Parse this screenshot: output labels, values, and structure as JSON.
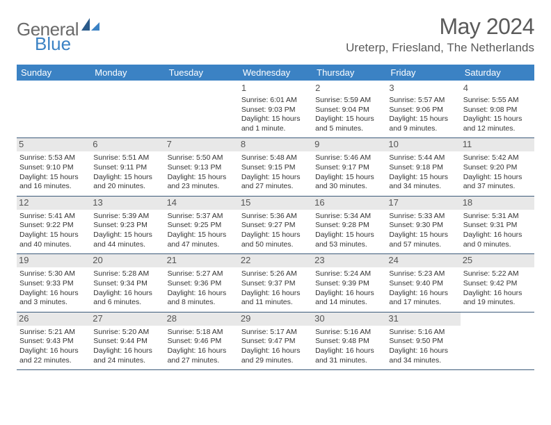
{
  "logo": {
    "text1": "General",
    "text2": "Blue"
  },
  "title": "May 2024",
  "location": "Ureterp, Friesland, The Netherlands",
  "colors": {
    "header_bg": "#3b82c4",
    "header_text": "#ffffff",
    "border": "#3b5a7a",
    "shade": "#e8e8e8",
    "body_text": "#333333",
    "title_text": "#5a5a5a",
    "logo_gray": "#6a6a6a",
    "logo_blue": "#3b82c4"
  },
  "weekdays": [
    "Sunday",
    "Monday",
    "Tuesday",
    "Wednesday",
    "Thursday",
    "Friday",
    "Saturday"
  ],
  "weeks": [
    [
      null,
      null,
      null,
      {
        "n": "1",
        "sr": "Sunrise: 6:01 AM",
        "ss": "Sunset: 9:03 PM",
        "d1": "Daylight: 15 hours",
        "d2": "and 1 minute."
      },
      {
        "n": "2",
        "sr": "Sunrise: 5:59 AM",
        "ss": "Sunset: 9:04 PM",
        "d1": "Daylight: 15 hours",
        "d2": "and 5 minutes."
      },
      {
        "n": "3",
        "sr": "Sunrise: 5:57 AM",
        "ss": "Sunset: 9:06 PM",
        "d1": "Daylight: 15 hours",
        "d2": "and 9 minutes."
      },
      {
        "n": "4",
        "sr": "Sunrise: 5:55 AM",
        "ss": "Sunset: 9:08 PM",
        "d1": "Daylight: 15 hours",
        "d2": "and 12 minutes."
      }
    ],
    [
      {
        "n": "5",
        "sr": "Sunrise: 5:53 AM",
        "ss": "Sunset: 9:10 PM",
        "d1": "Daylight: 15 hours",
        "d2": "and 16 minutes.",
        "shade": true
      },
      {
        "n": "6",
        "sr": "Sunrise: 5:51 AM",
        "ss": "Sunset: 9:11 PM",
        "d1": "Daylight: 15 hours",
        "d2": "and 20 minutes.",
        "shade": true
      },
      {
        "n": "7",
        "sr": "Sunrise: 5:50 AM",
        "ss": "Sunset: 9:13 PM",
        "d1": "Daylight: 15 hours",
        "d2": "and 23 minutes.",
        "shade": true
      },
      {
        "n": "8",
        "sr": "Sunrise: 5:48 AM",
        "ss": "Sunset: 9:15 PM",
        "d1": "Daylight: 15 hours",
        "d2": "and 27 minutes.",
        "shade": true
      },
      {
        "n": "9",
        "sr": "Sunrise: 5:46 AM",
        "ss": "Sunset: 9:17 PM",
        "d1": "Daylight: 15 hours",
        "d2": "and 30 minutes.",
        "shade": true
      },
      {
        "n": "10",
        "sr": "Sunrise: 5:44 AM",
        "ss": "Sunset: 9:18 PM",
        "d1": "Daylight: 15 hours",
        "d2": "and 34 minutes.",
        "shade": true
      },
      {
        "n": "11",
        "sr": "Sunrise: 5:42 AM",
        "ss": "Sunset: 9:20 PM",
        "d1": "Daylight: 15 hours",
        "d2": "and 37 minutes.",
        "shade": true
      }
    ],
    [
      {
        "n": "12",
        "sr": "Sunrise: 5:41 AM",
        "ss": "Sunset: 9:22 PM",
        "d1": "Daylight: 15 hours",
        "d2": "and 40 minutes.",
        "shade": true
      },
      {
        "n": "13",
        "sr": "Sunrise: 5:39 AM",
        "ss": "Sunset: 9:23 PM",
        "d1": "Daylight: 15 hours",
        "d2": "and 44 minutes.",
        "shade": true
      },
      {
        "n": "14",
        "sr": "Sunrise: 5:37 AM",
        "ss": "Sunset: 9:25 PM",
        "d1": "Daylight: 15 hours",
        "d2": "and 47 minutes.",
        "shade": true
      },
      {
        "n": "15",
        "sr": "Sunrise: 5:36 AM",
        "ss": "Sunset: 9:27 PM",
        "d1": "Daylight: 15 hours",
        "d2": "and 50 minutes.",
        "shade": true
      },
      {
        "n": "16",
        "sr": "Sunrise: 5:34 AM",
        "ss": "Sunset: 9:28 PM",
        "d1": "Daylight: 15 hours",
        "d2": "and 53 minutes.",
        "shade": true
      },
      {
        "n": "17",
        "sr": "Sunrise: 5:33 AM",
        "ss": "Sunset: 9:30 PM",
        "d1": "Daylight: 15 hours",
        "d2": "and 57 minutes.",
        "shade": true
      },
      {
        "n": "18",
        "sr": "Sunrise: 5:31 AM",
        "ss": "Sunset: 9:31 PM",
        "d1": "Daylight: 16 hours",
        "d2": "and 0 minutes.",
        "shade": true
      }
    ],
    [
      {
        "n": "19",
        "sr": "Sunrise: 5:30 AM",
        "ss": "Sunset: 9:33 PM",
        "d1": "Daylight: 16 hours",
        "d2": "and 3 minutes.",
        "shade": true
      },
      {
        "n": "20",
        "sr": "Sunrise: 5:28 AM",
        "ss": "Sunset: 9:34 PM",
        "d1": "Daylight: 16 hours",
        "d2": "and 6 minutes.",
        "shade": true
      },
      {
        "n": "21",
        "sr": "Sunrise: 5:27 AM",
        "ss": "Sunset: 9:36 PM",
        "d1": "Daylight: 16 hours",
        "d2": "and 8 minutes.",
        "shade": true
      },
      {
        "n": "22",
        "sr": "Sunrise: 5:26 AM",
        "ss": "Sunset: 9:37 PM",
        "d1": "Daylight: 16 hours",
        "d2": "and 11 minutes.",
        "shade": true
      },
      {
        "n": "23",
        "sr": "Sunrise: 5:24 AM",
        "ss": "Sunset: 9:39 PM",
        "d1": "Daylight: 16 hours",
        "d2": "and 14 minutes.",
        "shade": true
      },
      {
        "n": "24",
        "sr": "Sunrise: 5:23 AM",
        "ss": "Sunset: 9:40 PM",
        "d1": "Daylight: 16 hours",
        "d2": "and 17 minutes.",
        "shade": true
      },
      {
        "n": "25",
        "sr": "Sunrise: 5:22 AM",
        "ss": "Sunset: 9:42 PM",
        "d1": "Daylight: 16 hours",
        "d2": "and 19 minutes.",
        "shade": true
      }
    ],
    [
      {
        "n": "26",
        "sr": "Sunrise: 5:21 AM",
        "ss": "Sunset: 9:43 PM",
        "d1": "Daylight: 16 hours",
        "d2": "and 22 minutes.",
        "shade": true
      },
      {
        "n": "27",
        "sr": "Sunrise: 5:20 AM",
        "ss": "Sunset: 9:44 PM",
        "d1": "Daylight: 16 hours",
        "d2": "and 24 minutes.",
        "shade": true
      },
      {
        "n": "28",
        "sr": "Sunrise: 5:18 AM",
        "ss": "Sunset: 9:46 PM",
        "d1": "Daylight: 16 hours",
        "d2": "and 27 minutes.",
        "shade": true
      },
      {
        "n": "29",
        "sr": "Sunrise: 5:17 AM",
        "ss": "Sunset: 9:47 PM",
        "d1": "Daylight: 16 hours",
        "d2": "and 29 minutes.",
        "shade": true
      },
      {
        "n": "30",
        "sr": "Sunrise: 5:16 AM",
        "ss": "Sunset: 9:48 PM",
        "d1": "Daylight: 16 hours",
        "d2": "and 31 minutes.",
        "shade": true
      },
      {
        "n": "31",
        "sr": "Sunrise: 5:16 AM",
        "ss": "Sunset: 9:50 PM",
        "d1": "Daylight: 16 hours",
        "d2": "and 34 minutes.",
        "shade": true
      },
      null
    ]
  ]
}
